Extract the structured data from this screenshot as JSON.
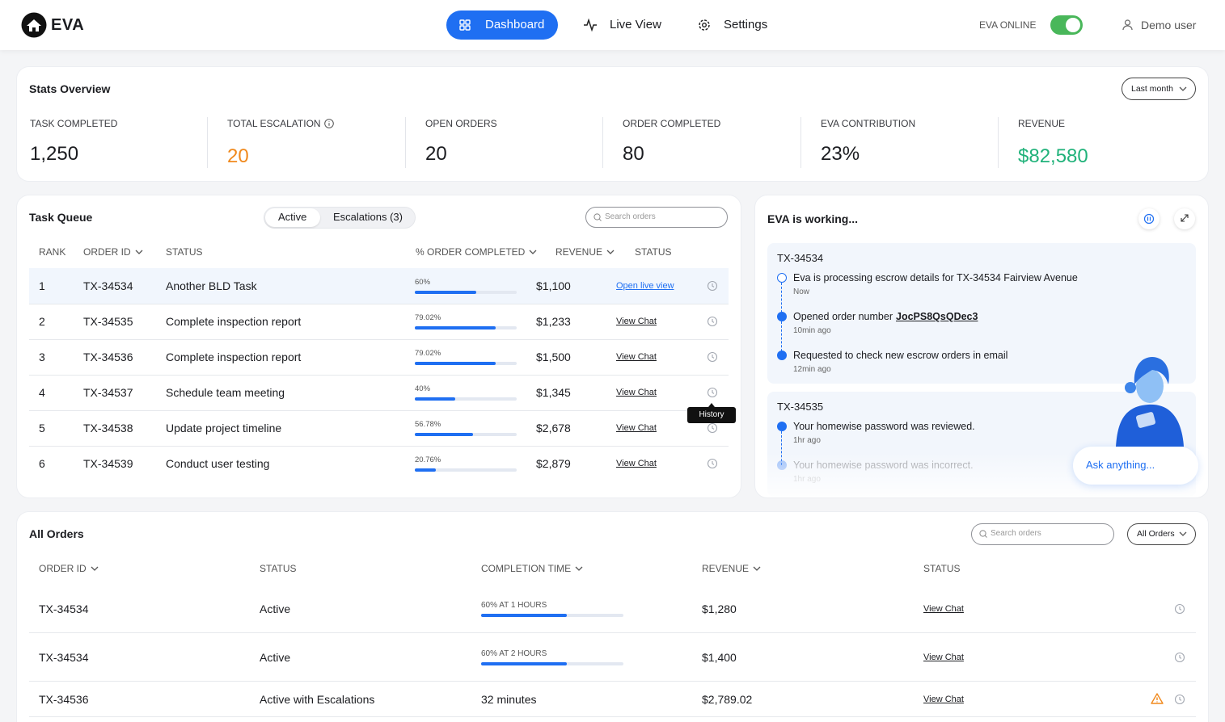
{
  "nav": {
    "logo": "EVA",
    "items": [
      "Dashboard",
      "Live View",
      "Settings"
    ],
    "status": "EVA ONLINE",
    "user": "Demo user"
  },
  "stats": {
    "title": "Stats Overview",
    "filter": "Last month",
    "items": [
      {
        "label": "TASK COMPLETED",
        "value": "1,250"
      },
      {
        "label": "TOTAL ESCALATION",
        "value": "20",
        "info": true,
        "color": "#f0891d"
      },
      {
        "label": "OPEN ORDERS",
        "value": "20"
      },
      {
        "label": "ORDER COMPLETED",
        "value": "80"
      },
      {
        "label": "EVA CONTRIBUTION",
        "value": "23%"
      },
      {
        "label": "REVENUE",
        "value": "$82,580",
        "color": "#20b27a"
      }
    ]
  },
  "task_queue": {
    "title": "Task Queue",
    "tabs": [
      "Active",
      "Escalations (3)"
    ],
    "search": "Search orders",
    "columns": [
      {
        "label": "RANK"
      },
      {
        "label": "ORDER ID",
        "sortable": true
      },
      {
        "label": "STATUS"
      },
      {
        "label": "% ORDER COMPLETED",
        "sortable": true
      },
      {
        "label": "REVENUE",
        "sortable": true
      },
      {
        "label": "STATUS"
      }
    ],
    "rows": [
      {
        "rank": 1,
        "order_id": "TX-34534",
        "status": "Another BLD Task",
        "progress": {
          "value": 60,
          "label": "60%"
        },
        "revenue": "$1,100",
        "action": "Open live view"
      },
      {
        "rank": 2,
        "order_id": "TX-34535",
        "status": "Complete inspection report",
        "progress": {
          "value": 79.02,
          "label": "79.02%"
        },
        "revenue": "$1,233",
        "action": "View Chat"
      },
      {
        "rank": 3,
        "order_id": "TX-34536",
        "status": "Complete inspection report",
        "progress": {
          "value": 79.02,
          "label": "79.02%"
        },
        "revenue": "$1,500",
        "action": "View Chat"
      },
      {
        "rank": 4,
        "order_id": "TX-34537",
        "status": "Schedule team meeting",
        "progress": {
          "value": 40,
          "label": "40%"
        },
        "revenue": "$1,345",
        "action": "View Chat"
      },
      {
        "rank": 5,
        "order_id": "TX-34538",
        "status": "Update project timeline",
        "progress": {
          "value": 56.78,
          "label": "56.78%"
        },
        "revenue": "$2,678",
        "action": "View Chat"
      },
      {
        "rank": 6,
        "order_id": "TX-34539",
        "status": "Conduct user testing",
        "progress": {
          "value": 20.76,
          "label": "20.76%"
        },
        "revenue": "$2,879",
        "action": "View Chat"
      }
    ],
    "tooltip": "History"
  },
  "eva": {
    "title": "EVA is working...",
    "prompt": "Ask anything...",
    "groups": [
      {
        "order_id": "TX-34534",
        "events": [
          {
            "text": "Eva is processing escrow details for TX-34534 Fairview Avenue",
            "time": "Now"
          },
          {
            "text": "Opened order number",
            "link": "JocPS8QsQDec3",
            "time": "10min ago"
          },
          {
            "text": "Requested to check new escrow orders in email",
            "time": "12min ago"
          }
        ]
      },
      {
        "order_id": "TX-34535",
        "events": [
          {
            "text": "Your homewise password was reviewed.",
            "time": "1hr ago"
          },
          {
            "text": "Your homewise password was incorrect.",
            "time": "1hr ago"
          }
        ]
      }
    ]
  },
  "all_orders": {
    "title": "All Orders",
    "search": "Search orders",
    "filter": "All Orders",
    "columns": [
      {
        "label": "ORDER ID",
        "sortable": true
      },
      {
        "label": "STATUS"
      },
      {
        "label": "COMPLETION TIME",
        "sortable": true
      },
      {
        "label": "REVENUE",
        "sortable": true
      },
      {
        "label": "STATUS"
      }
    ],
    "rows": [
      {
        "order_id": "TX-34534",
        "status": "Active",
        "completion": {
          "value": 60,
          "label": "60% AT 1 HOURS"
        },
        "revenue": "$1,280",
        "action": "View Chat"
      },
      {
        "order_id": "TX-34534",
        "status": "Active",
        "completion": {
          "value": 60,
          "label": "60% AT 2 HOURS"
        },
        "revenue": "$1,400",
        "action": "View Chat"
      },
      {
        "order_id": "TX-34536",
        "status": "Active with Escalations",
        "completion": "32 minutes",
        "revenue": "$2,789.02",
        "action": "View Chat",
        "warning": true
      }
    ]
  }
}
